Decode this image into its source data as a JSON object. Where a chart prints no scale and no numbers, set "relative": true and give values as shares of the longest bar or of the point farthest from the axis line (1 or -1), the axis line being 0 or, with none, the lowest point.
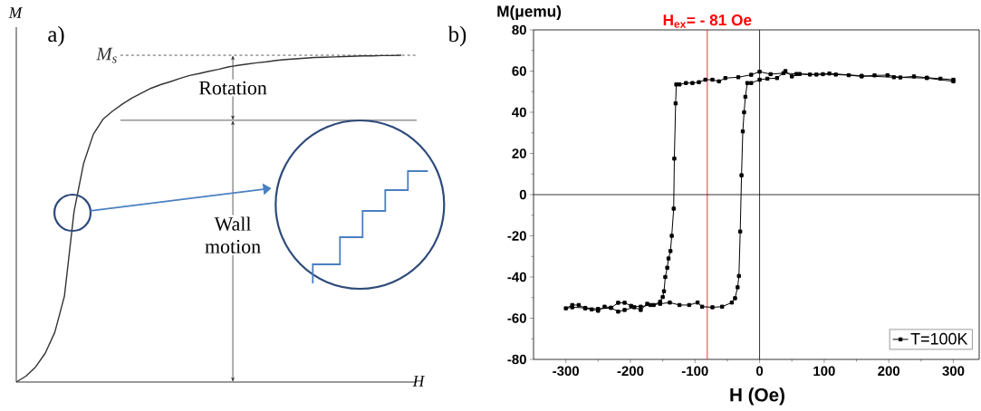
{
  "chart_data": [
    {
      "type": "line",
      "title": "a)",
      "xlabel": "H",
      "ylabel": "M",
      "relative": true,
      "categories": [
        null,
        null,
        null,
        null,
        null,
        null,
        null,
        null,
        null,
        null,
        null,
        null,
        null,
        null,
        null,
        null,
        null,
        null,
        null,
        null,
        null,
        null,
        null,
        null,
        null,
        null,
        null,
        null,
        null,
        null,
        null,
        null,
        null,
        null,
        null,
        null,
        null,
        null,
        null,
        null,
        null
      ],
      "values": [
        0,
        0.018,
        0.046,
        0.088,
        0.152,
        0.263,
        0.522,
        0.67,
        0.758,
        0.804,
        0.829,
        0.85,
        0.869,
        0.884,
        0.899,
        0.91,
        0.919,
        0.929,
        0.938,
        0.944,
        0.951,
        0.957,
        0.964,
        0.969,
        0.973,
        0.977,
        0.98,
        0.984,
        0.987,
        0.989,
        0.991,
        0.993,
        0.994,
        0.995,
        0.996,
        0.997,
        0.998,
        0.998,
        0.999,
        0.999,
        1
      ],
      "color": "#333333",
      "ref_lines": [
        {
          "axis": "y",
          "value": 1,
          "label": "M$_{s}$",
          "line_style": "dashed",
          "color": "#333333"
        },
        {
          "axis": "y",
          "value": 0.801,
          "color": "#333333"
        }
      ],
      "annotations": [
        "Rotation",
        "Wall motion"
      ]
    },
    {
      "type": "line",
      "title": "b)",
      "xlabel": "H (Oe)",
      "ylabel": "M(μemu)",
      "xlim": [
        -350,
        340
      ],
      "ylim": [
        -80,
        80
      ],
      "xticks": [
        -300,
        -200,
        -100,
        0,
        100,
        200,
        300
      ],
      "yticks": [
        -80,
        -60,
        -40,
        -20,
        0,
        20,
        40,
        60,
        80
      ],
      "marker": "square",
      "legend": "bottom right",
      "series": [
        {
          "name": "T=100K",
          "color": "#000000",
          "x": [
            300,
            280,
            259,
            239,
            218,
            198,
            178,
            158,
            138,
            118,
            98,
            78,
            57,
            37,
            17,
            0,
            -13,
            -33,
            -53,
            -63,
            -73,
            -84,
            -94,
            -104,
            -114,
            -124,
            -129,
            -130,
            -132,
            -133,
            -136,
            -138,
            -141,
            -143,
            -146,
            -148,
            -150,
            -154,
            -164,
            -174,
            -184,
            -194,
            -209,
            -219,
            -230,
            -240,
            -250,
            -260,
            -270,
            -280,
            -290,
            -300,
            -290,
            -270,
            -250,
            -230,
            -219,
            -209,
            -199,
            -184,
            -169,
            -154,
            -139,
            -124,
            -109,
            -96,
            -89,
            -73,
            -58,
            -43,
            -38,
            -34,
            -32,
            -30,
            -28,
            -26,
            -24,
            -22,
            -19,
            -13,
            0,
            12,
            27,
            40,
            50,
            62,
            88,
            108,
            158,
            208,
            259,
            300
          ],
          "values": [
            55.8,
            56.3,
            56.8,
            57.4,
            56.9,
            58,
            57.9,
            57.4,
            58,
            58.3,
            58.5,
            58.3,
            58.6,
            59,
            58.5,
            59.7,
            58.2,
            57,
            56.6,
            55,
            55.8,
            55.8,
            54.6,
            54.2,
            54.2,
            53.5,
            53.5,
            44.3,
            17.5,
            -6.8,
            -20,
            -27.4,
            -31,
            -35.5,
            -40,
            -46.9,
            -49.7,
            -52,
            -53.6,
            -53,
            -56,
            -54.7,
            -56,
            -56.8,
            -54.9,
            -54.4,
            -56.4,
            -55.7,
            -55.2,
            -53.6,
            -53.6,
            -55.2,
            -54.7,
            -55,
            -55.5,
            -55,
            -52.5,
            -52.5,
            -54,
            -54.4,
            -53.6,
            -53,
            -52.4,
            -53.6,
            -53.6,
            -52.4,
            -54.4,
            -54.7,
            -54.4,
            -52.4,
            -50.3,
            -45,
            -39.5,
            -17.9,
            9.4,
            30.7,
            40,
            47.5,
            54.2,
            54.2,
            55.8,
            56.3,
            56.6,
            60,
            57.4,
            58.6,
            58.3,
            58.8,
            57.7,
            57,
            56.6,
            55
          ]
        }
      ],
      "ref_lines": [
        {
          "axis": "x",
          "value": -81,
          "label": "H$_{ex}$= - 81 Oe",
          "color": "#ff0000"
        },
        {
          "axis": "x",
          "value": 0,
          "color": "#000000"
        },
        {
          "axis": "y",
          "value": 0,
          "color": "#000000"
        }
      ]
    }
  ]
}
